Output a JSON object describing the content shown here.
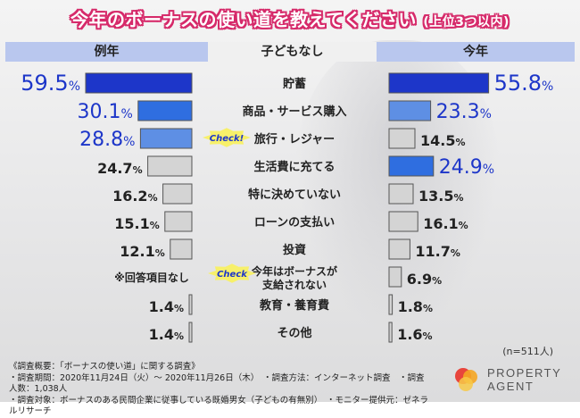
{
  "title": "今年のボーナスの使い道を教えてください",
  "title_suffix": "(上位3つ以内)",
  "headers": {
    "left": "例年",
    "center": "子どもなし",
    "right": "今年"
  },
  "sample_note": "(n=511人)",
  "no_answer_label": "※回答項目なし",
  "check_label": "Check!",
  "check_label2": "Check",
  "footer": {
    "line1": "《調査概要：「ボーナスの使い道」に関する調査》",
    "line2": "・調査期間：2020年11月24日（火）～ 2020年11月26日（木）　・調査方法：インターネット調査　・調査人数：1,038人",
    "line3": "・調査対象：ボーナスのある民間企業に従事している既婚男女（子どもの有無別）　・モニター提供元：ゼネラルリサーチ"
  },
  "logo": {
    "line1": "PROPERTY",
    "line2": "AGENT"
  },
  "colors": {
    "title": "#d62a6a",
    "highlight_top": "#1d36c9",
    "highlight_mid": "#2f6ee0",
    "highlight_light": "#5e8fe4",
    "neutral": "#d4d4d4",
    "label_blue": "#1d36c9"
  },
  "chart_data": {
    "type": "bar",
    "categories": [
      "貯蓄",
      "商品・サービス購入",
      "旅行・レジャー",
      "生活費に充てる",
      "特に決めていない",
      "ローンの支払い",
      "投資",
      "今年はボーナスが\n支給されない",
      "教育・養育費",
      "その他"
    ],
    "series": [
      {
        "name": "例年",
        "values": [
          59.5,
          30.1,
          28.8,
          24.7,
          16.2,
          15.1,
          12.1,
          null,
          1.4,
          1.4
        ]
      },
      {
        "name": "今年",
        "values": [
          55.8,
          23.3,
          14.5,
          24.9,
          13.5,
          16.1,
          11.7,
          6.9,
          1.8,
          1.6
        ]
      }
    ],
    "unit": "%"
  }
}
